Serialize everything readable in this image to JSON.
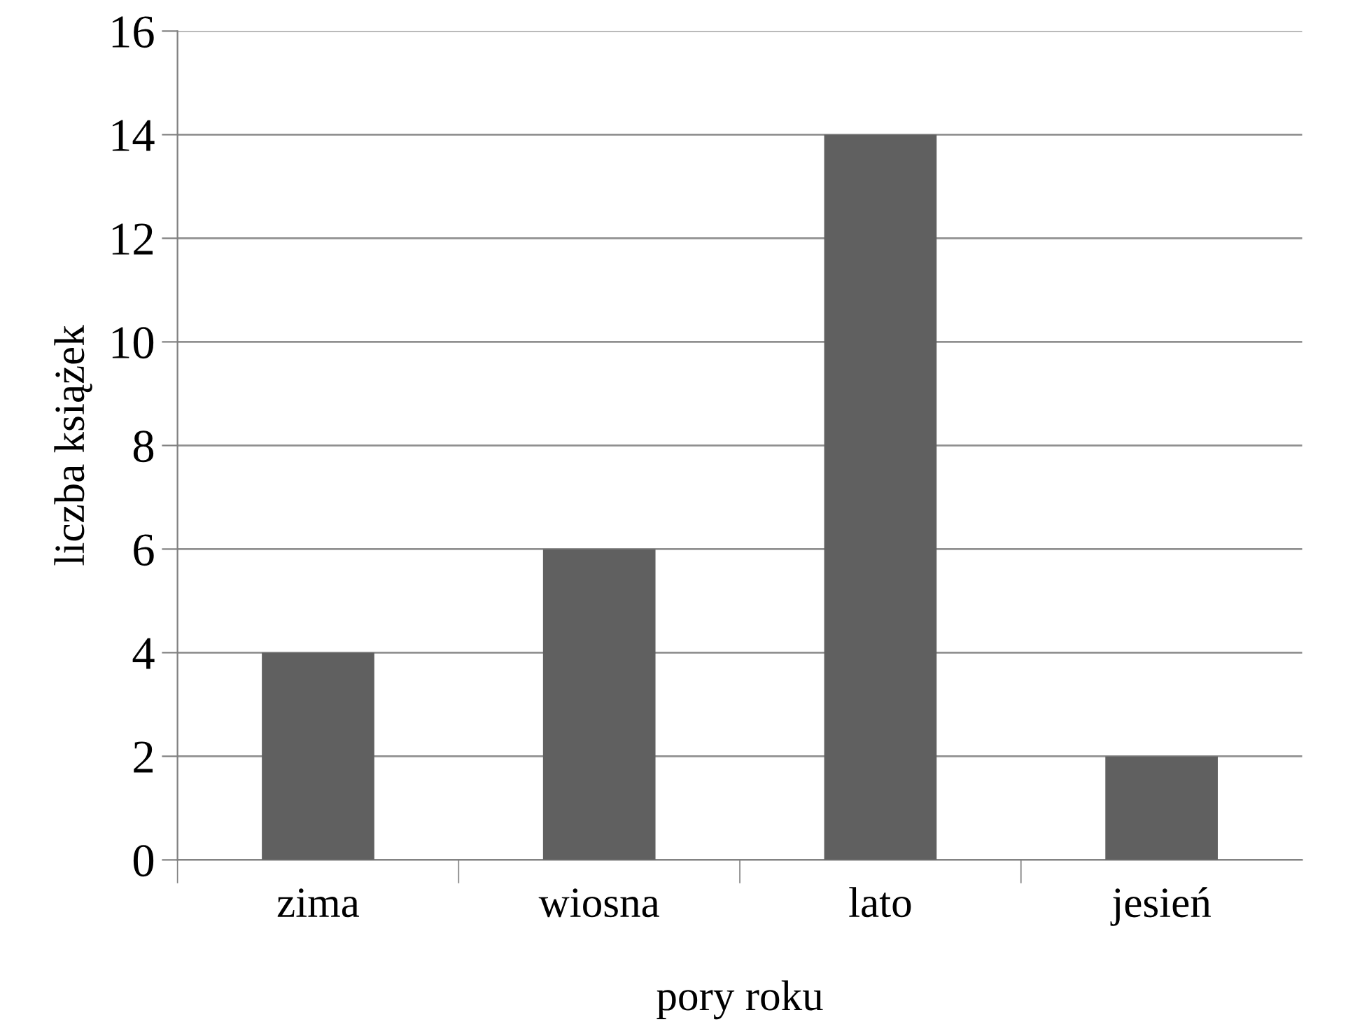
{
  "chart_data": {
    "type": "bar",
    "xlabel": "pory roku",
    "ylabel": "liczba książek",
    "categories": [
      "zima",
      "wiosna",
      "lato",
      "jesień"
    ],
    "values": [
      4,
      6,
      14,
      2
    ],
    "color": "#606060",
    "ylim": [
      0,
      16
    ],
    "yticks": [
      0,
      2,
      4,
      6,
      8,
      10,
      12,
      14,
      16
    ],
    "grid": "y",
    "legend": false
  }
}
